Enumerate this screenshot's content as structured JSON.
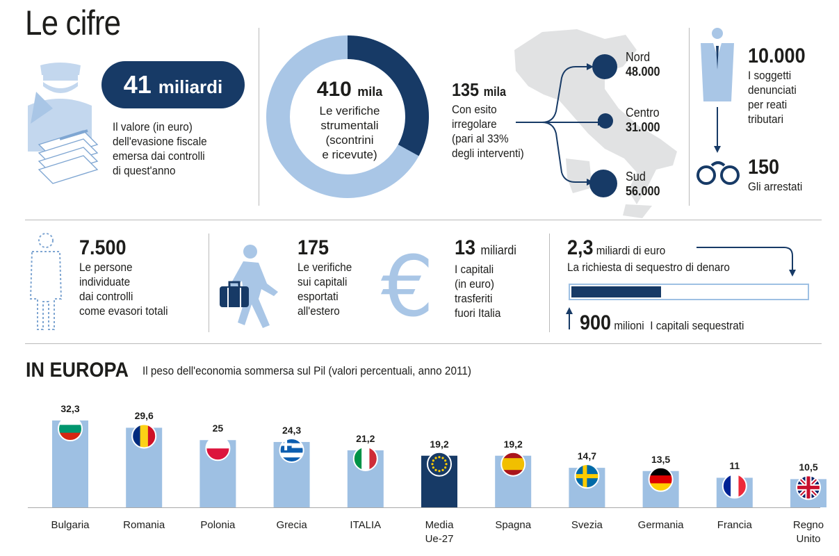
{
  "header": {
    "title": "Le cifre"
  },
  "evasion": {
    "amount": "41",
    "amount_unit": "miliardi",
    "lines": [
      "Il valore (in euro)",
      "dell'evasione fiscale",
      "emersa dai controlli",
      "di quest'anno"
    ]
  },
  "checks": {
    "total_value": "410",
    "total_unit": "mila",
    "total_lines": [
      "Le verifiche",
      "strumentali",
      "(scontrini",
      "e ricevute)"
    ],
    "irregular_value": "135",
    "irregular_unit": "mila",
    "irregular_lines": [
      "Con esito",
      "irregolare",
      "(pari al 33%",
      "degli interventi)"
    ],
    "irregular_share": 0.33
  },
  "regions": [
    {
      "name": "Nord",
      "value": "48.000"
    },
    {
      "name": "Centro",
      "value": "31.000"
    },
    {
      "name": "Sud",
      "value": "56.000"
    }
  ],
  "reported": {
    "value": "10.000",
    "lines": [
      "I soggetti",
      "denunciati",
      "per reati",
      "tributari"
    ]
  },
  "arrested": {
    "value": "150",
    "label": "Gli arrestati"
  },
  "evaders": {
    "value": "7.500",
    "lines": [
      "Le persone",
      "individuate",
      "dai controlli",
      "come evasori totali"
    ]
  },
  "export_checks": {
    "value": "175",
    "lines": [
      "Le verifiche",
      "sui capitali",
      "esportati",
      "all'estero"
    ]
  },
  "capital": {
    "value": "13",
    "unit": "miliardi",
    "lines": [
      "I capitali",
      "(in euro)",
      "trasferiti",
      "fuori Italia"
    ]
  },
  "seizure": {
    "request_value": "2,3",
    "request_unit": "miliardi di euro",
    "request_label": "La richiesta di sequestro di denaro",
    "seized_value": "900",
    "seized_unit": "milioni",
    "seized_label": "I capitali sequestrati",
    "seized_fraction": 0.39
  },
  "europe": {
    "title": "IN EUROPA",
    "subtitle": "Il peso dell'economia sommersa sul Pil (valori percentuali, anno 2011)"
  },
  "colors": {
    "navy": "#173a66",
    "light_blue": "#9ec0e3",
    "icon_blue": "#a9c6e6"
  },
  "chart_data": {
    "type": "bar",
    "categories": [
      "Bulgaria",
      "Romania",
      "Polonia",
      "Grecia",
      "ITALIA",
      "Media Ue-27",
      "Spagna",
      "Svezia",
      "Germania",
      "Francia",
      "Regno Unito"
    ],
    "category_lines": [
      [
        "Bulgaria"
      ],
      [
        "Romania"
      ],
      [
        "Polonia"
      ],
      [
        "Grecia"
      ],
      [
        "ITALIA"
      ],
      [
        "Media",
        "Ue-27"
      ],
      [
        "Spagna"
      ],
      [
        "Svezia"
      ],
      [
        "Germania"
      ],
      [
        "Francia"
      ],
      [
        "Regno",
        "Unito"
      ]
    ],
    "values": [
      32.3,
      29.6,
      25,
      24.3,
      21.2,
      19.2,
      19.2,
      14.7,
      13.5,
      11,
      10.5
    ],
    "labels": [
      "32,3",
      "29,6",
      "25",
      "24,3",
      "21,2",
      "19,2",
      "19,2",
      "14,7",
      "13,5",
      "11",
      "10,5"
    ],
    "highlight": "Media Ue-27",
    "flags": [
      "bulgaria-flag-icon",
      "romania-flag-icon",
      "poland-flag-icon",
      "greece-flag-icon",
      "italy-flag-icon",
      "eu-flag-icon",
      "spain-flag-icon",
      "sweden-flag-icon",
      "germany-flag-icon",
      "france-flag-icon",
      "uk-flag-icon"
    ],
    "ylim": [
      0,
      35
    ]
  }
}
